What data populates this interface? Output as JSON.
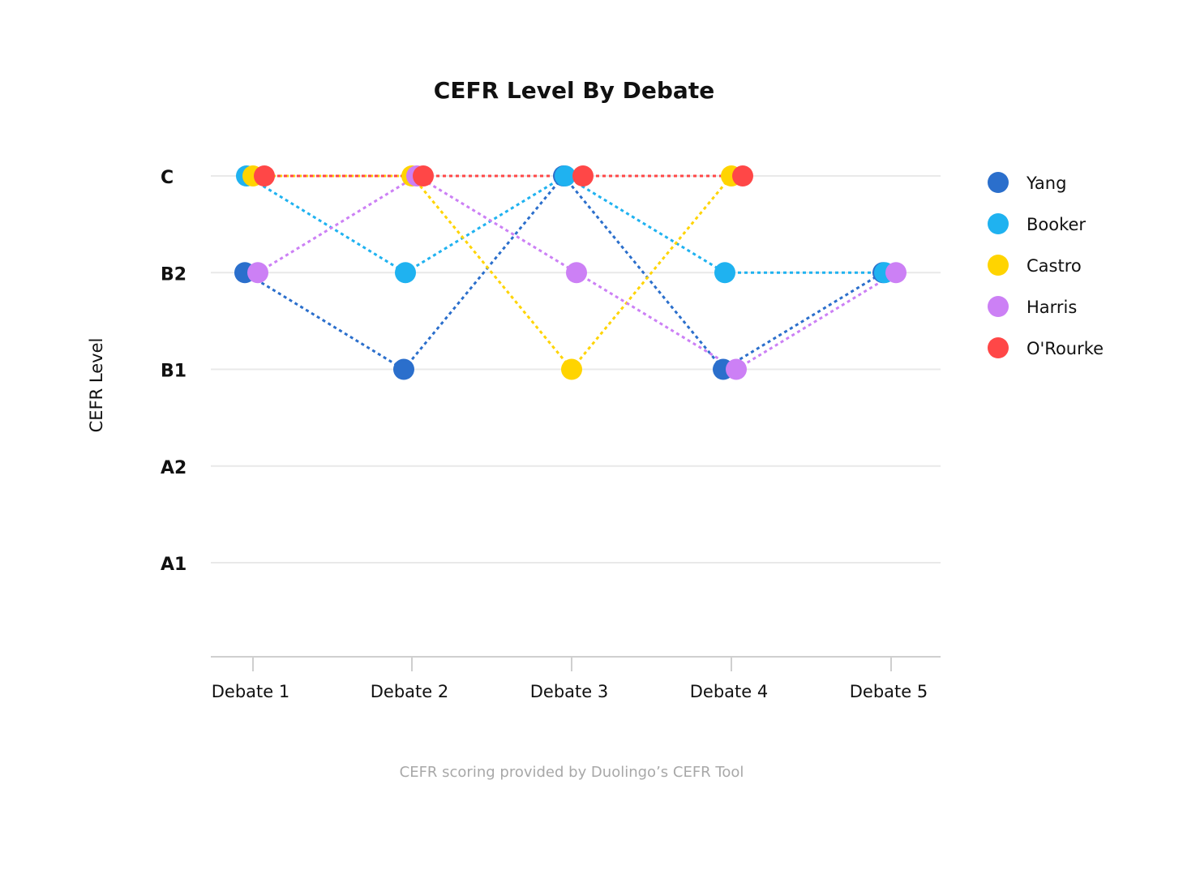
{
  "chart_data": {
    "type": "line",
    "title": "CEFR Level By Debate",
    "xlabel": "",
    "ylabel": "CEFR Level",
    "categories": [
      "Debate 1",
      "Debate 2",
      "Debate 3",
      "Debate 4",
      "Debate 5"
    ],
    "y_levels": [
      "A1",
      "A2",
      "B1",
      "B2",
      "C"
    ],
    "grid": true,
    "legend_position": "right",
    "line_style": "dotted",
    "series": [
      {
        "name": "Yang",
        "color": "#2b6fcc",
        "values": [
          "B2",
          "B1",
          "C",
          "B1",
          "B2"
        ]
      },
      {
        "name": "Booker",
        "color": "#1fb2f0",
        "values": [
          "C",
          "B2",
          "C",
          "B2",
          "B2"
        ]
      },
      {
        "name": "Castro",
        "color": "#ffd400",
        "values": [
          "C",
          "C",
          "B1",
          "C",
          null
        ]
      },
      {
        "name": "Harris",
        "color": "#cc80f5",
        "values": [
          "B2",
          "C",
          "B2",
          "B1",
          "B2"
        ]
      },
      {
        "name": "O'Rourke",
        "color": "#ff4747",
        "values": [
          "C",
          "C",
          "C",
          "C",
          null
        ]
      }
    ],
    "caption": "CEFR scoring provided by Duolingo’s CEFR Tool"
  }
}
